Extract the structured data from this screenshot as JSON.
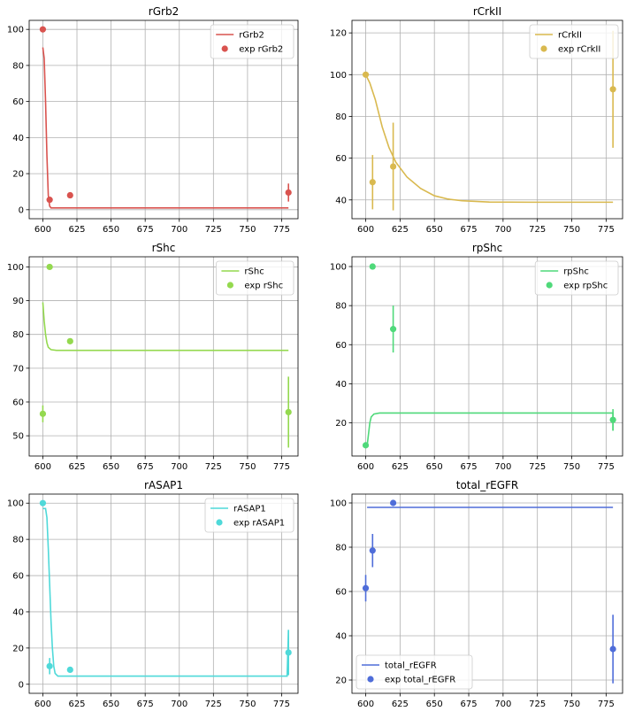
{
  "chart_data": [
    {
      "type": "line",
      "title": "rGrb2",
      "color": "#d9534f",
      "xlim": [
        590,
        787
      ],
      "ylim": [
        -5,
        105
      ],
      "xticks": [
        600,
        625,
        650,
        675,
        700,
        725,
        750,
        775
      ],
      "yticks": [
        0,
        20,
        40,
        60,
        80,
        100
      ],
      "grid": true,
      "legend_position": "top-right",
      "sim_label": "rGrb2",
      "exp_label": "exp rGrb2",
      "sim_line": [
        [
          600,
          90
        ],
        [
          601,
          84
        ],
        [
          602,
          60
        ],
        [
          603,
          30
        ],
        [
          604,
          8
        ],
        [
          605,
          2
        ],
        [
          606,
          1
        ],
        [
          610,
          1
        ],
        [
          650,
          1
        ],
        [
          700,
          1
        ],
        [
          780,
          1
        ]
      ],
      "exp_points": [
        {
          "x": 600,
          "y": 100,
          "err": 0
        },
        {
          "x": 605,
          "y": 5.5,
          "err": 0
        },
        {
          "x": 620,
          "y": 8,
          "err": 0
        },
        {
          "x": 780,
          "y": 9.5,
          "err": 5
        }
      ]
    },
    {
      "type": "line",
      "title": "rCrkII",
      "color": "#d9b94f",
      "xlim": [
        590,
        787
      ],
      "ylim": [
        31,
        126
      ],
      "xticks": [
        600,
        625,
        650,
        675,
        700,
        725,
        750,
        775
      ],
      "yticks": [
        40,
        60,
        80,
        100,
        120
      ],
      "grid": true,
      "legend_position": "top-right",
      "sim_label": "rCrkII",
      "exp_label": "exp rCrkII",
      "sim_line": [
        [
          600,
          100
        ],
        [
          603,
          96
        ],
        [
          607,
          88
        ],
        [
          612,
          75
        ],
        [
          617,
          65
        ],
        [
          622,
          58
        ],
        [
          630,
          51
        ],
        [
          640,
          45.5
        ],
        [
          650,
          42
        ],
        [
          660,
          40.4
        ],
        [
          670,
          39.6
        ],
        [
          690,
          39
        ],
        [
          720,
          38.9
        ],
        [
          780,
          38.9
        ]
      ],
      "exp_points": [
        {
          "x": 600,
          "y": 100,
          "err": 0
        },
        {
          "x": 605,
          "y": 48.5,
          "err": 13
        },
        {
          "x": 620,
          "y": 56,
          "err": 21
        },
        {
          "x": 780,
          "y": 93,
          "err": 28
        }
      ]
    },
    {
      "type": "line",
      "title": "rShc",
      "color": "#94d94f",
      "xlim": [
        590,
        787
      ],
      "ylim": [
        44,
        103
      ],
      "xticks": [
        600,
        625,
        650,
        675,
        700,
        725,
        750,
        775
      ],
      "yticks": [
        50,
        60,
        70,
        80,
        90,
        100
      ],
      "grid": true,
      "legend_position": "top-right",
      "sim_label": "rShc",
      "exp_label": "exp rShc",
      "sim_line": [
        [
          600,
          89.5
        ],
        [
          601,
          84
        ],
        [
          602,
          80
        ],
        [
          603,
          77.5
        ],
        [
          604,
          76.2
        ],
        [
          606,
          75.5
        ],
        [
          610,
          75.3
        ],
        [
          650,
          75.3
        ],
        [
          780,
          75.3
        ]
      ],
      "exp_points": [
        {
          "x": 600,
          "y": 56.5,
          "err": 2.5
        },
        {
          "x": 605,
          "y": 100,
          "err": 0
        },
        {
          "x": 620,
          "y": 78,
          "err": 0
        },
        {
          "x": 780,
          "y": 57,
          "err": 10.5
        }
      ]
    },
    {
      "type": "line",
      "title": "rpShc",
      "color": "#4fd97a",
      "xlim": [
        590,
        787
      ],
      "ylim": [
        3,
        105
      ],
      "xticks": [
        600,
        625,
        650,
        675,
        700,
        725,
        750,
        775
      ],
      "yticks": [
        20,
        40,
        60,
        80,
        100
      ],
      "grid": true,
      "legend_position": "top-right",
      "sim_label": "rpShc",
      "exp_label": "exp rpShc",
      "sim_line": [
        [
          601,
          8
        ],
        [
          602,
          14
        ],
        [
          603,
          20
        ],
        [
          604,
          23
        ],
        [
          606,
          24.5
        ],
        [
          610,
          25
        ],
        [
          650,
          25
        ],
        [
          780,
          25
        ],
        [
          780,
          16
        ]
      ],
      "exp_points": [
        {
          "x": 600,
          "y": 8.5,
          "err": 0
        },
        {
          "x": 605,
          "y": 100,
          "err": 0
        },
        {
          "x": 620,
          "y": 68,
          "err": 12
        },
        {
          "x": 780,
          "y": 21.5,
          "err": 5.5
        }
      ]
    },
    {
      "type": "line",
      "title": "rASAP1",
      "color": "#4fd9d9",
      "xlim": [
        590,
        787
      ],
      "ylim": [
        -5,
        105
      ],
      "xticks": [
        600,
        625,
        650,
        675,
        700,
        725,
        750,
        775
      ],
      "yticks": [
        0,
        20,
        40,
        60,
        80,
        100
      ],
      "grid": true,
      "legend_position": "top-right",
      "sim_label": "rASAP1",
      "exp_label": "exp rASAP1",
      "sim_line": [
        [
          600,
          97
        ],
        [
          602,
          97
        ],
        [
          603,
          92
        ],
        [
          604,
          75
        ],
        [
          605,
          55
        ],
        [
          606,
          35
        ],
        [
          607,
          20
        ],
        [
          608,
          10
        ],
        [
          609,
          6
        ],
        [
          611,
          4.5
        ],
        [
          650,
          4.5
        ],
        [
          700,
          4.5
        ],
        [
          779,
          4.5
        ],
        [
          780,
          30
        ]
      ],
      "exp_points": [
        {
          "x": 600,
          "y": 100,
          "err": 0
        },
        {
          "x": 605,
          "y": 10,
          "err": 4.5
        },
        {
          "x": 620,
          "y": 8,
          "err": 0
        },
        {
          "x": 780,
          "y": 17.5,
          "err": 12.5
        }
      ]
    },
    {
      "type": "line",
      "title": "total_rEGFR",
      "color": "#4f6dd9",
      "xlim": [
        590,
        787
      ],
      "ylim": [
        14,
        104
      ],
      "xticks": [
        600,
        625,
        650,
        675,
        700,
        725,
        750,
        775
      ],
      "yticks": [
        20,
        40,
        60,
        80,
        100
      ],
      "grid": true,
      "legend_position": "bottom-left",
      "sim_label": "total_rEGFR",
      "exp_label": "exp total_rEGFR",
      "sim_line": [
        [
          601,
          98
        ],
        [
          780,
          98
        ]
      ],
      "exp_points": [
        {
          "x": 600,
          "y": 61.5,
          "err": 6
        },
        {
          "x": 605,
          "y": 78.5,
          "err": 7.5
        },
        {
          "x": 620,
          "y": 100,
          "err": 0
        },
        {
          "x": 780,
          "y": 34,
          "err": 15.5
        }
      ]
    }
  ]
}
